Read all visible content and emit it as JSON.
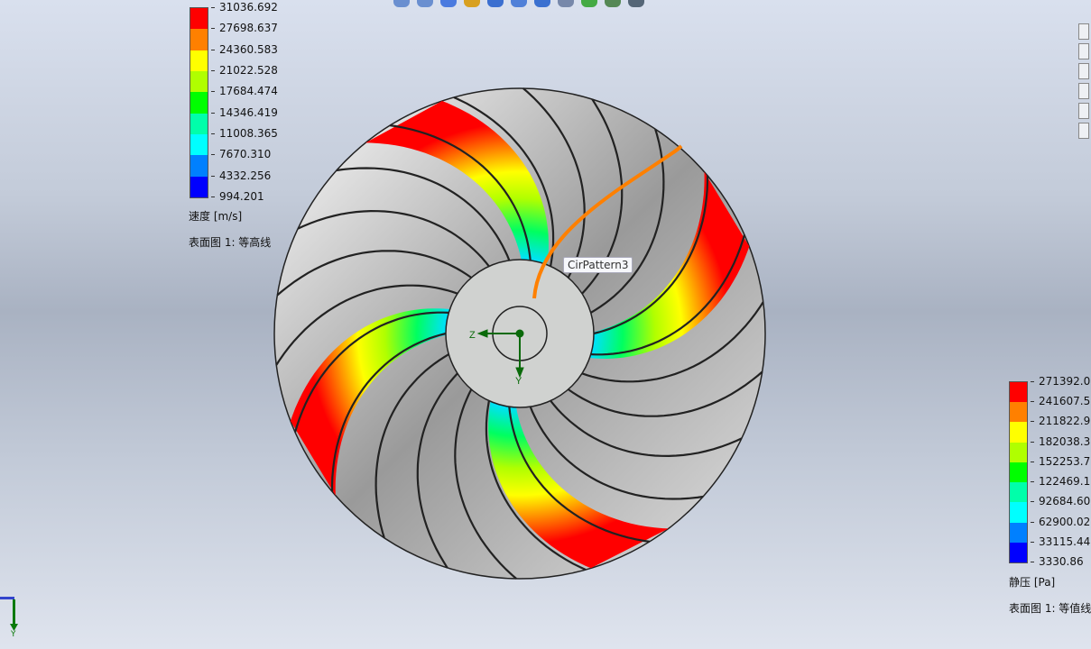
{
  "toolbar": {
    "icons": [
      "zoom-to-fit-icon",
      "zoom-area-icon",
      "previous-view-icon",
      "section-view-icon",
      "dynamic-annotation-icon",
      "view-orientation-icon",
      "display-style-icon",
      "hide-show-items-icon",
      "edit-appearance-icon",
      "apply-scene-icon",
      "view-settings-icon"
    ]
  },
  "right_panel": {
    "icons": [
      "home-icon",
      "design-library-icon",
      "file-explorer-icon",
      "view-palette-icon",
      "appearances-icon",
      "custom-properties-icon"
    ]
  },
  "velocity_legend": {
    "ticks": [
      "31036.692",
      "27698.637",
      "24360.583",
      "21022.528",
      "17684.474",
      "14346.419",
      "11008.365",
      "7670.310",
      "4332.256",
      "994.201"
    ],
    "colors": [
      "#ff0000",
      "#ff8000",
      "#ffff00",
      "#b0ff00",
      "#00ff00",
      "#00ffaa",
      "#00ffff",
      "#0080ff",
      "#0000ff"
    ],
    "quantity": "速度 [m/s]",
    "plot_name": "表面图 1: 等高线"
  },
  "pressure_legend": {
    "ticks": [
      "271392.0",
      "241607.5",
      "211822.9",
      "182038.3",
      "152253.7",
      "122469.1",
      "92684.60",
      "62900.02",
      "33115.44",
      "3330.86"
    ],
    "colors": [
      "#ff0000",
      "#ff8000",
      "#ffff00",
      "#b0ff00",
      "#00ff00",
      "#00ffaa",
      "#00ffff",
      "#0080ff",
      "#0000ff"
    ],
    "quantity": "静压 [Pa]",
    "plot_name": "表面图 1: 等值线"
  },
  "model": {
    "tooltip": "CirPattern3",
    "axis_z": "Z",
    "axis_y": "Y",
    "highlight_color": "#ff8000"
  },
  "triad": {
    "axis_y": "Y"
  }
}
